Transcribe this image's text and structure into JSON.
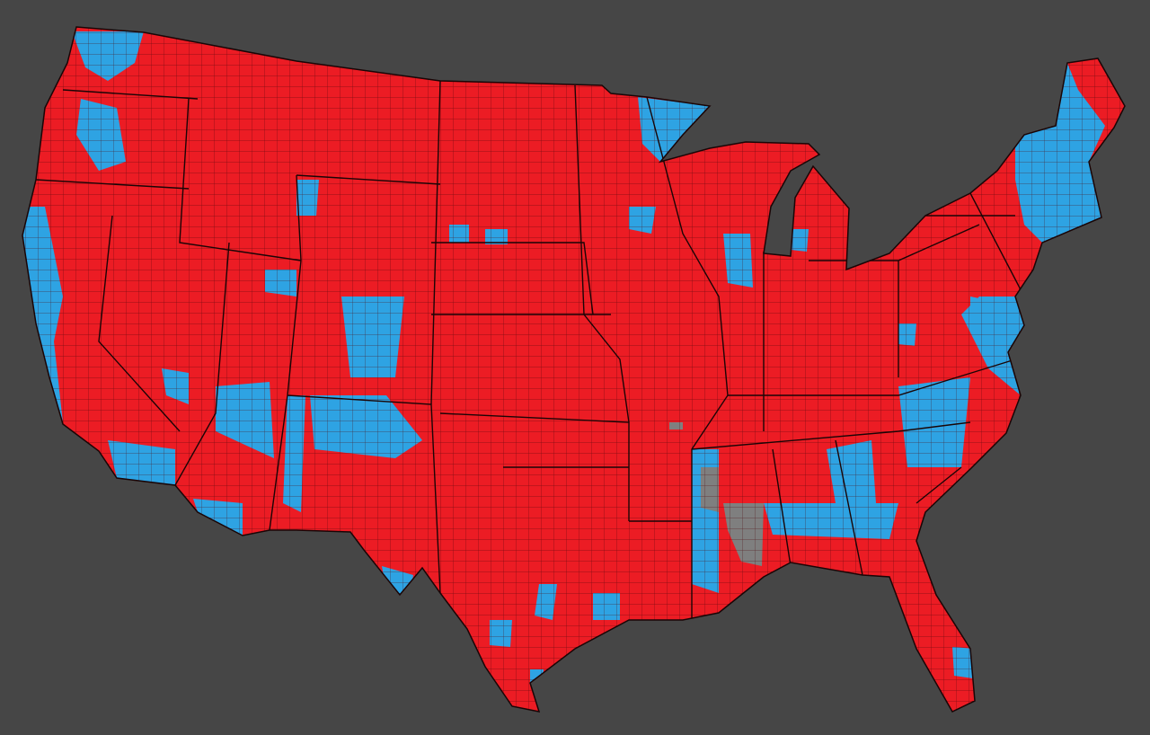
{
  "map": {
    "colors": {
      "background": "#464646",
      "republican": "#ec1c24",
      "democratic": "#2ea3e3",
      "no_data": "#7f7f7f",
      "border": "#1a0506"
    }
  }
}
